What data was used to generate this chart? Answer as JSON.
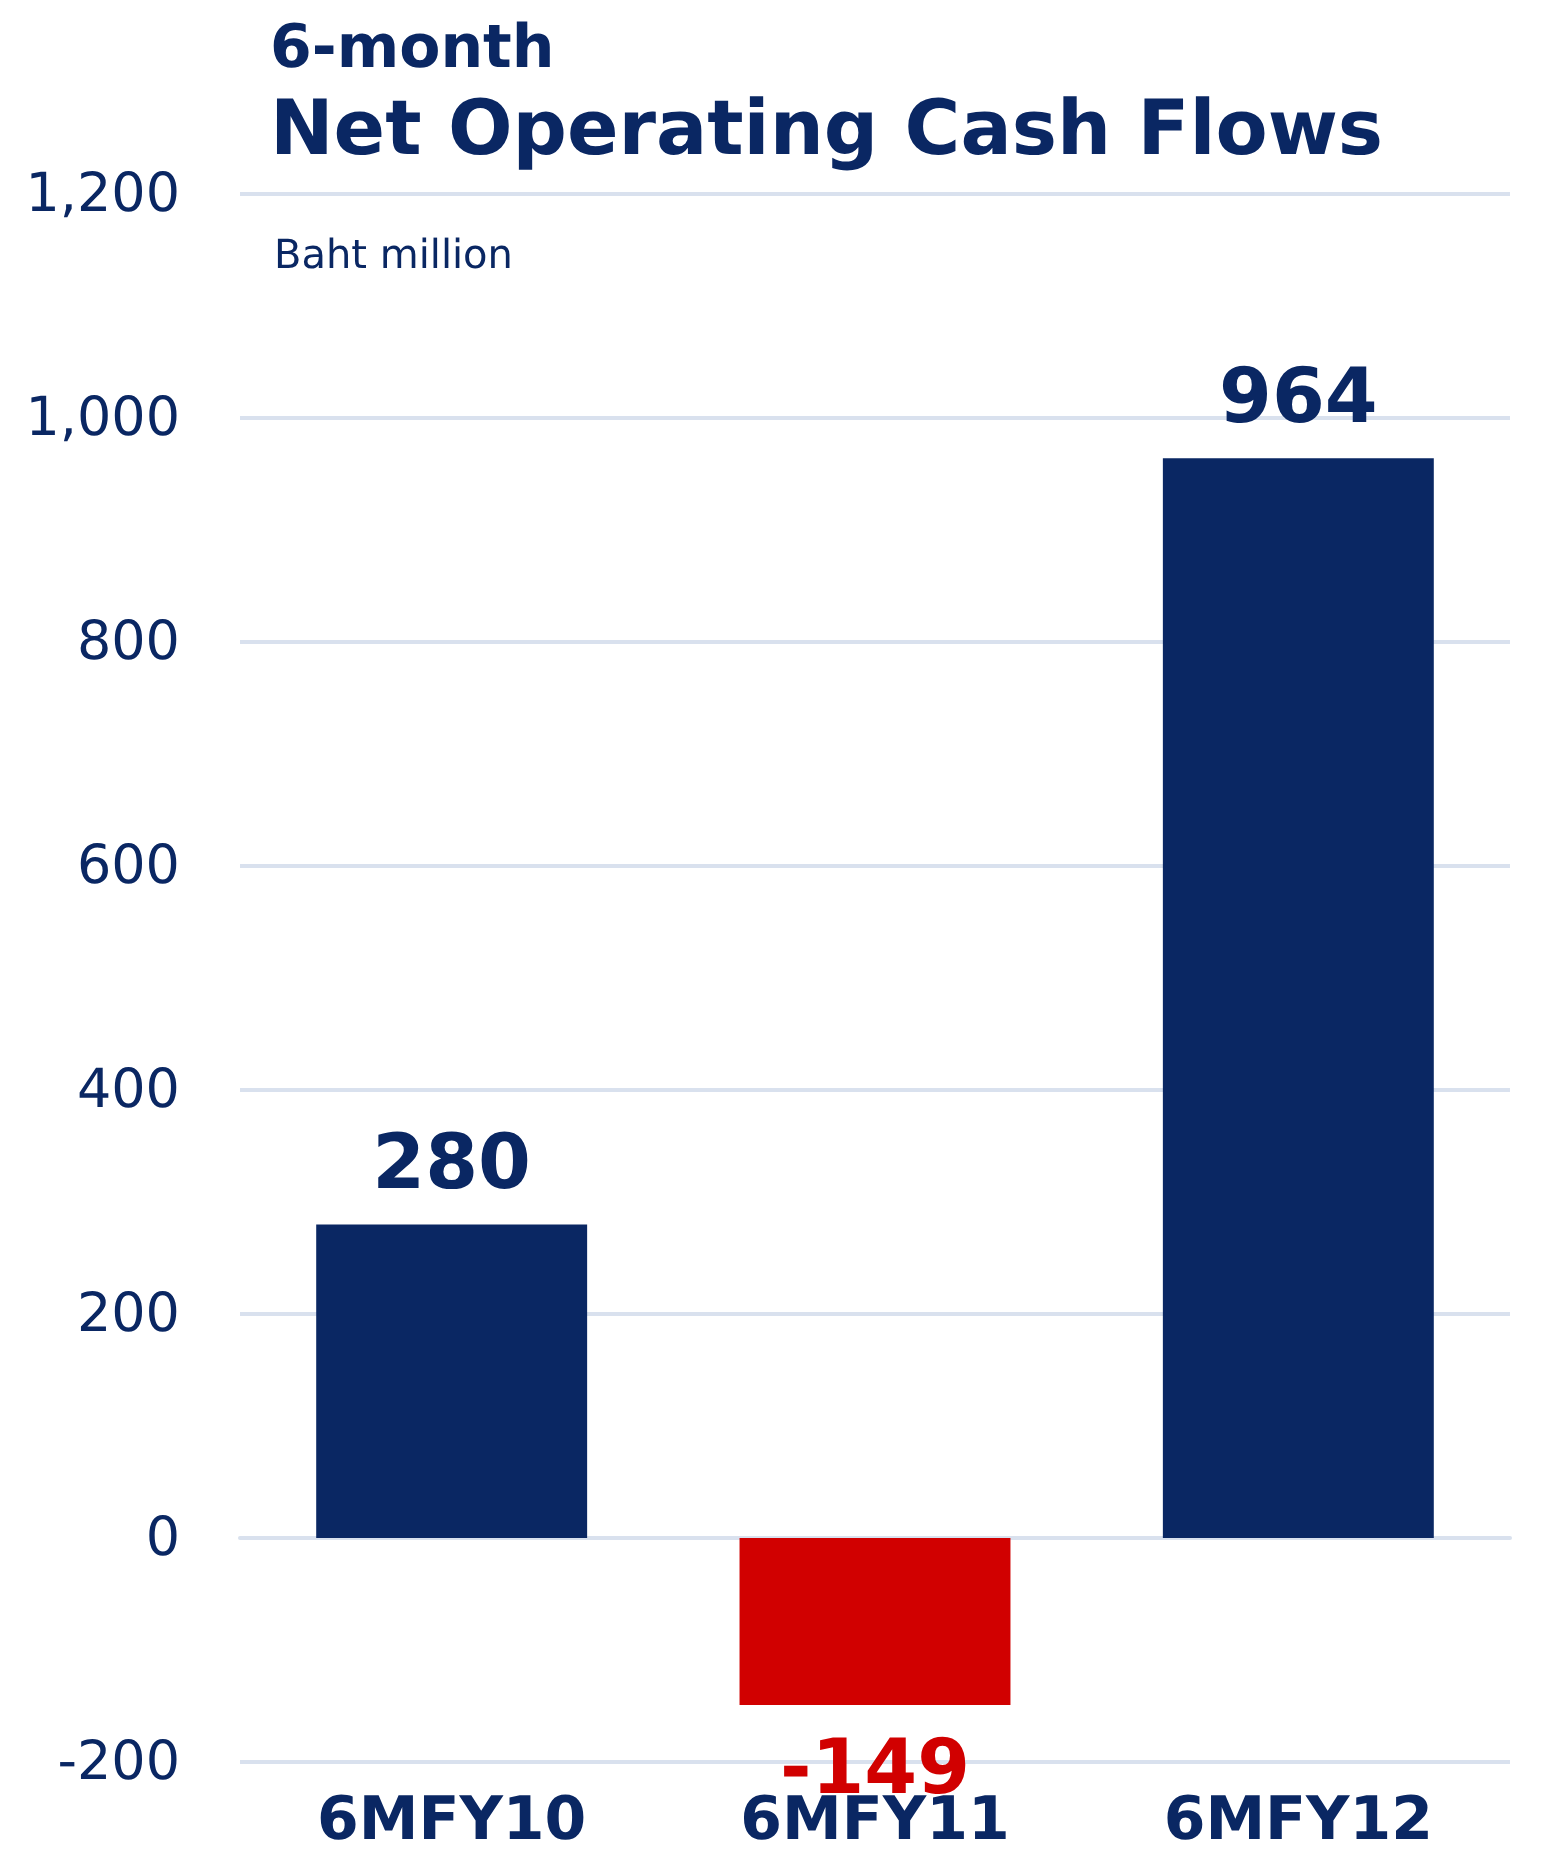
{
  "chart_data": {
    "type": "bar",
    "title": "6-month",
    "subtitle": "Net Operating Cash Flows",
    "ylabel": "Baht million",
    "categories": [
      "6MFY10",
      "6MFY11",
      "6MFY12"
    ],
    "values": [
      280,
      -149,
      964
    ],
    "colors": [
      "#0a2763",
      "#d10000",
      "#0a2763"
    ],
    "ylim": [
      -200,
      1200
    ],
    "yticks": [
      {
        "value": -200,
        "label": "-200"
      },
      {
        "value": 0,
        "label": "0"
      },
      {
        "value": 200,
        "label": "200"
      },
      {
        "value": 400,
        "label": "400"
      },
      {
        "value": 600,
        "label": "600"
      },
      {
        "value": 800,
        "label": "800"
      },
      {
        "value": 1000,
        "label": "1,000"
      },
      {
        "value": 1200,
        "label": "1,200"
      }
    ],
    "grid": "y",
    "data_labels": true
  }
}
